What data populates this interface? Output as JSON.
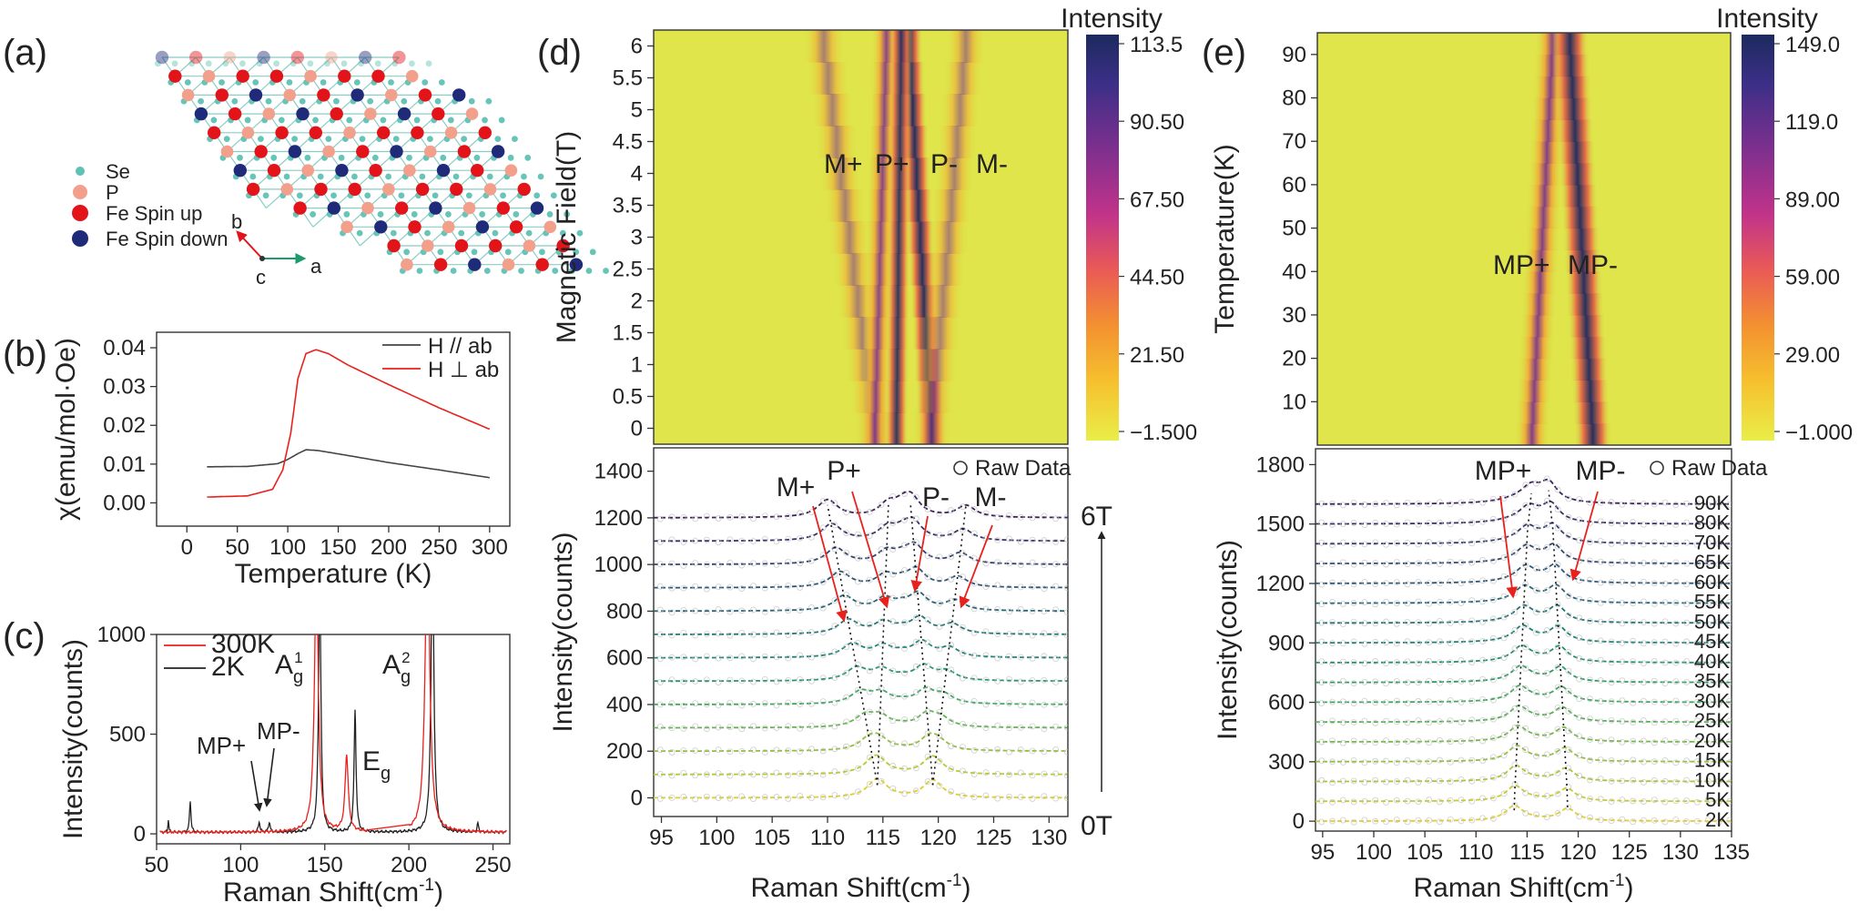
{
  "colors": {
    "red": "#e8211d",
    "black": "#222222",
    "fe_up": "#e3131a",
    "fe_down": "#1f2a78",
    "se": "#5fc1b4",
    "p": "#f2a08c",
    "axis_a": "#1a9c6b",
    "axis_b": "#e3131a"
  },
  "panels": {
    "a": {
      "label": "(a)",
      "legend": [
        "Se",
        "P",
        "Fe Spin up",
        "Fe Spin down"
      ],
      "axis_labels": {
        "a": "a",
        "b": "b",
        "c": "c"
      }
    },
    "b": {
      "label": "(b)"
    },
    "c": {
      "label": "(c)",
      "annotations": {
        "ag1": "A",
        "ag1_sub": "g",
        "ag1_sup": "1",
        "ag2": "A",
        "ag2_sub": "g",
        "ag2_sup": "2",
        "eg": "E",
        "eg_sub": "g",
        "mp_plus": "MP+",
        "mp_minus": "MP-"
      }
    },
    "d": {
      "label": "(d)",
      "cbar_title": "Intensity",
      "labels": [
        "M+",
        "P+",
        "P-",
        "M-"
      ],
      "raw": "Raw Data",
      "top_end": "6T",
      "bottom_end": "0T"
    },
    "e": {
      "label": "(e)",
      "cbar_title": "Intensity",
      "labels": [
        "MP+",
        "MP-"
      ],
      "raw": "Raw Data"
    }
  },
  "chart_data": [
    {
      "id": "b",
      "type": "line",
      "xlabel": "Temperature (K)",
      "ylabel": "χ(emu/mol·Oe)",
      "xlim": [
        -30,
        320
      ],
      "ylim": [
        -0.006,
        0.044
      ],
      "xticks": [
        0,
        50,
        100,
        150,
        200,
        250,
        300
      ],
      "yticks": [
        0.0,
        0.01,
        0.02,
        0.03,
        0.04
      ],
      "ytick_labels": [
        "0.00",
        "0.01",
        "0.02",
        "0.03",
        "0.04"
      ],
      "legend_position": "top-right",
      "series": [
        {
          "name": "H // ab",
          "color": "#444444",
          "x": [
            20,
            60,
            90,
            100,
            110,
            118,
            130,
            160,
            200,
            250,
            300
          ],
          "y": [
            0.0093,
            0.0094,
            0.0101,
            0.0112,
            0.0127,
            0.0137,
            0.0135,
            0.0122,
            0.0104,
            0.0085,
            0.0065
          ]
        },
        {
          "name": "H ⊥ ab",
          "color": "#e8211d",
          "x": [
            20,
            60,
            85,
            95,
            103,
            110,
            118,
            128,
            140,
            160,
            200,
            250,
            300
          ],
          "y": [
            0.0015,
            0.0018,
            0.0035,
            0.0085,
            0.018,
            0.032,
            0.0385,
            0.0395,
            0.0385,
            0.0355,
            0.0305,
            0.0245,
            0.019
          ]
        }
      ]
    },
    {
      "id": "c",
      "type": "line",
      "xlabel": "Raman Shift(cm-1)",
      "ylabel": "Intensity(counts)",
      "xlim": [
        50,
        260
      ],
      "ylim": [
        -50,
        1000
      ],
      "xticks": [
        50,
        100,
        150,
        200,
        250
      ],
      "yticks": [
        0,
        500,
        1000
      ],
      "legend_position": "top-left",
      "series": [
        {
          "name": "300K",
          "color": "#e8211d",
          "peaks": [
            [
              145,
              1300,
              2.8
            ],
            [
              163,
              380,
              2.3
            ],
            [
              211,
              1500,
              3.2
            ]
          ]
        },
        {
          "name": "2K",
          "color": "#222222",
          "peaks": [
            [
              57,
              60,
              0.7
            ],
            [
              70,
              160,
              1.0
            ],
            [
              111,
              50,
              1.2
            ],
            [
              117,
              50,
              1.2
            ],
            [
              147,
              1300,
              1.6
            ],
            [
              168,
              610,
              1.4
            ],
            [
              214,
              1500,
              1.9
            ],
            [
              241,
              45,
              1.0
            ]
          ]
        }
      ]
    },
    {
      "id": "d-top",
      "type": "heatmap",
      "xlabel": "",
      "ylabel": "Magnetic Field(T)",
      "xlim": [
        95,
        131.5
      ],
      "ylim": [
        -0.25,
        6.25
      ],
      "yticks": [
        0,
        0.5,
        1,
        1.5,
        2,
        2.5,
        3,
        3.5,
        4,
        4.5,
        5,
        5.5,
        6
      ],
      "colorbar": {
        "title": "Intensity",
        "ticks": [
          "113.5",
          "90.50",
          "67.50",
          "44.50",
          "21.50",
          "−1.500"
        ],
        "min": -1.5,
        "max": 113.5
      },
      "peaks_vs_field": {
        "field": [
          0,
          6
        ],
        "M+": [
          114.5,
          110.0
        ],
        "P+": [
          114.5,
          115.5
        ],
        "P-": [
          119.5,
          117.5
        ],
        "M-": [
          119.5,
          122.5
        ]
      }
    },
    {
      "id": "d-bottom",
      "type": "line",
      "xlabel": "Raman Shift(cm-1)",
      "ylabel": "Intensity(counts)",
      "xlim": [
        94.3,
        131.7
      ],
      "ylim": [
        -80,
        1500
      ],
      "xticks": [
        95,
        100,
        105,
        110,
        115,
        120,
        125,
        130
      ],
      "yticks": [
        0,
        200,
        400,
        600,
        800,
        1000,
        1200,
        1400
      ],
      "offset_step": 100,
      "fields": [
        0,
        0.5,
        1,
        1.5,
        2,
        2.5,
        3,
        3.5,
        4,
        4.5,
        5,
        5.5,
        6
      ],
      "legend": "Raw Data",
      "colors": [
        "#dcd028",
        "#b9c92a",
        "#8fbf3b",
        "#64b351",
        "#3fa561",
        "#27966d",
        "#1f8574",
        "#227577",
        "#276576",
        "#2d5473",
        "#33446d",
        "#363366",
        "#3a225c"
      ]
    },
    {
      "id": "e-top",
      "type": "heatmap",
      "xlabel": "",
      "ylabel": "Temperature(K)",
      "xlim": [
        95,
        131
      ],
      "ylim": [
        0,
        95
      ],
      "yticks": [
        10,
        20,
        30,
        40,
        50,
        60,
        70,
        80,
        90
      ],
      "colorbar": {
        "title": "Intensity",
        "ticks": [
          "149.0",
          "119.0",
          "89.00",
          "59.00",
          "29.00",
          "−1.000"
        ],
        "min": -1,
        "max": 149
      },
      "peaks_vs_temperature": {
        "temperature": [
          0,
          95
        ],
        "MP+": [
          113.7,
          115.5
        ],
        "MP-": [
          119.0,
          117.0
        ]
      }
    },
    {
      "id": "e-bottom",
      "type": "line",
      "xlabel": "Raman Shift(cm-1)",
      "ylabel": "Intensity(counts)",
      "xlim": [
        94.3,
        135
      ],
      "ylim": [
        -50,
        1880
      ],
      "xticks": [
        95,
        100,
        105,
        110,
        115,
        120,
        125,
        130,
        135
      ],
      "yticks": [
        0,
        300,
        600,
        900,
        1200,
        1500,
        1800
      ],
      "offset_step": 100,
      "temperatures": [
        "2K",
        "5K",
        "10K",
        "15K",
        "20K",
        "25K",
        "30K",
        "35K",
        "40K",
        "45K",
        "50K",
        "55K",
        "60K",
        "65K",
        "70K",
        "80K",
        "90K"
      ],
      "legend": "Raw Data",
      "colors": [
        "#dcd028",
        "#c6cc28",
        "#abc52f",
        "#8fbf3b",
        "#73b64a",
        "#59ad57",
        "#43a45f",
        "#2f9966",
        "#238d6d",
        "#1f8074",
        "#237277",
        "#286478",
        "#2c5676",
        "#304872",
        "#343b6c",
        "#372e65",
        "#3a225c"
      ]
    }
  ]
}
